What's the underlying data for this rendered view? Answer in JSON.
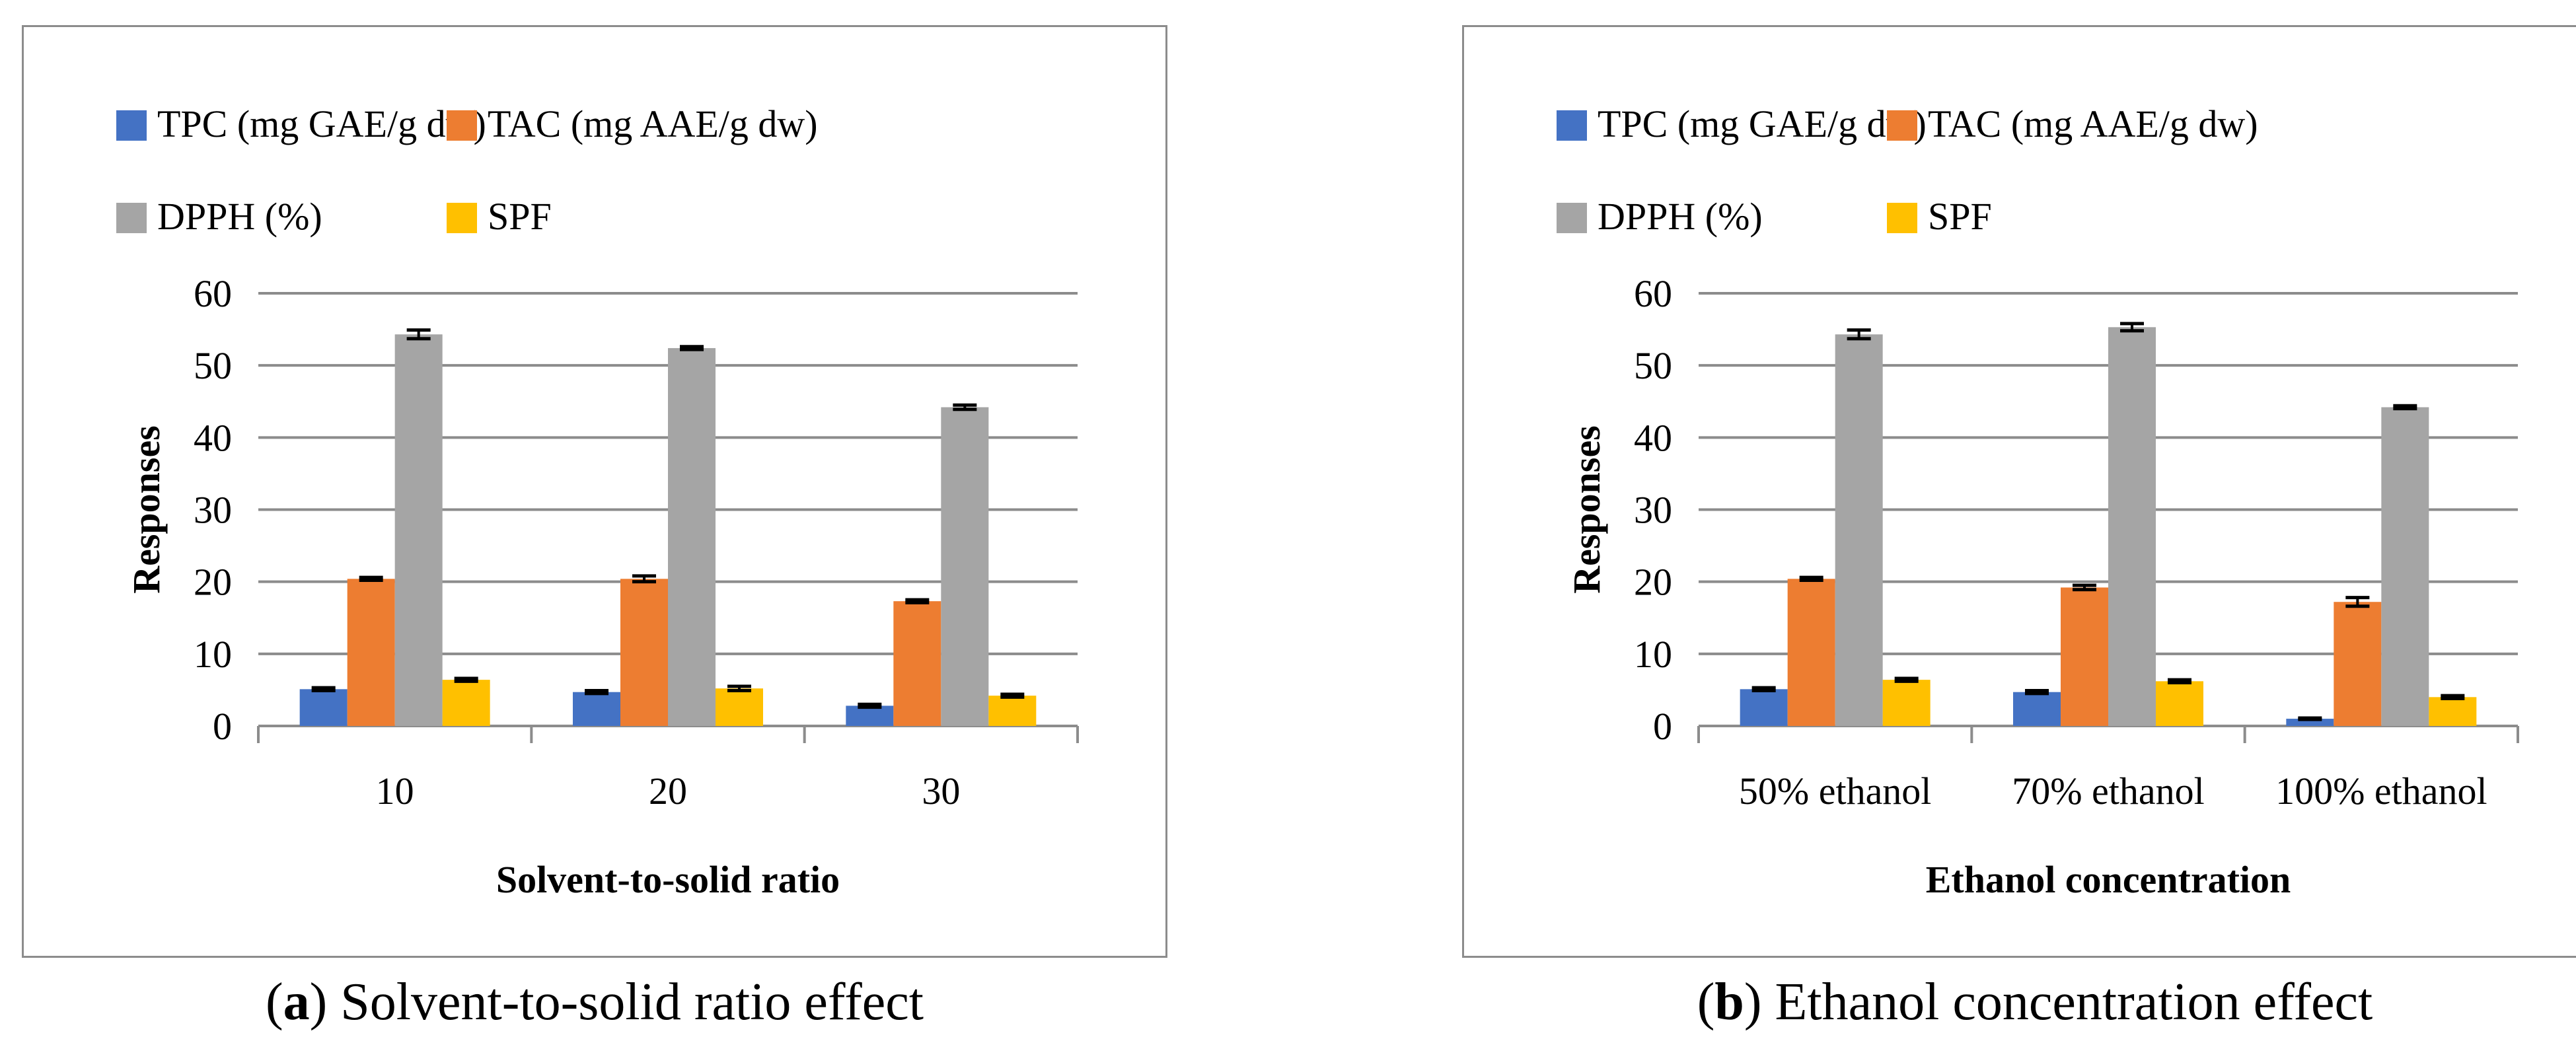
{
  "chart_data": [
    {
      "type": "bar",
      "panel_label": "a",
      "caption": "Solvent-to-solid ratio effect",
      "categories": [
        "10",
        "20",
        "30"
      ],
      "xlabel": "Solvent-to-solid ratio",
      "ylabel": "Responses",
      "ylim": [
        0,
        60
      ],
      "yticks": [
        0,
        10,
        20,
        30,
        40,
        50,
        60
      ],
      "grid": true,
      "legend_position": "top",
      "series": [
        {
          "name": "TPC (mg GAE/g dw)",
          "color": "#4472C4",
          "values": [
            5.1,
            4.7,
            2.8
          ],
          "errors": [
            0.2,
            0.2,
            0.2
          ]
        },
        {
          "name": "TAC (mg AAE/g dw)",
          "color": "#ED7D31",
          "values": [
            20.4,
            20.4,
            17.3
          ],
          "errors": [
            0.2,
            0.4,
            0.2
          ]
        },
        {
          "name": "DPPH (%)",
          "color": "#A5A5A5",
          "values": [
            54.3,
            52.4,
            44.2
          ],
          "errors": [
            0.6,
            0.2,
            0.3
          ]
        },
        {
          "name": "SPF",
          "color": "#FFC000",
          "values": [
            6.4,
            5.2,
            4.2
          ],
          "errors": [
            0.2,
            0.3,
            0.2
          ]
        }
      ]
    },
    {
      "type": "bar",
      "panel_label": "b",
      "caption": "Ethanol concentration effect",
      "categories": [
        "50% ethanol",
        "70% ethanol",
        "100% ethanol"
      ],
      "xlabel": "Ethanol concentration",
      "ylabel": "Responses",
      "ylim": [
        0,
        60
      ],
      "yticks": [
        0,
        10,
        20,
        30,
        40,
        50,
        60
      ],
      "grid": true,
      "legend_position": "top",
      "series": [
        {
          "name": "TPC (mg GAE/g dw)",
          "color": "#4472C4",
          "values": [
            5.1,
            4.7,
            1.0
          ],
          "errors": [
            0.2,
            0.2,
            0.1
          ]
        },
        {
          "name": "TAC (mg AAE/g dw)",
          "color": "#ED7D31",
          "values": [
            20.4,
            19.2,
            17.2
          ],
          "errors": [
            0.2,
            0.3,
            0.6
          ]
        },
        {
          "name": "DPPH (%)",
          "color": "#A5A5A5",
          "values": [
            54.3,
            55.3,
            44.2
          ],
          "errors": [
            0.6,
            0.5,
            0.2
          ]
        },
        {
          "name": "SPF",
          "color": "#FFC000",
          "values": [
            6.4,
            6.2,
            4.0
          ],
          "errors": [
            0.2,
            0.2,
            0.2
          ]
        }
      ]
    }
  ]
}
